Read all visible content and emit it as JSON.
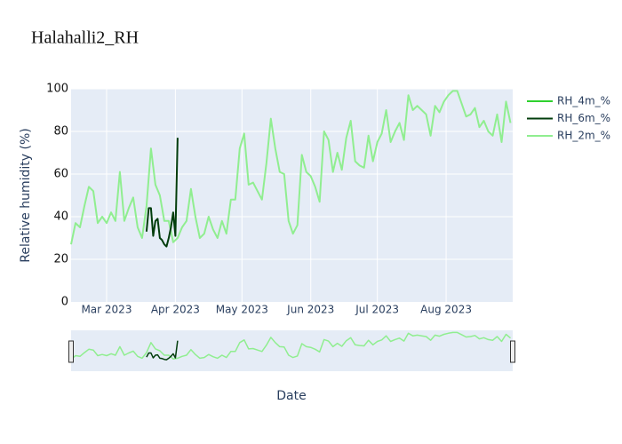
{
  "chart_data": {
    "type": "line",
    "title": "Halahalli2_RH",
    "xlabel": "Date",
    "ylabel": "Relative humidity (%)",
    "xlim": [
      "2023-02-13",
      "2023-08-31"
    ],
    "xticks": [
      {
        "value": "2023-03-01",
        "label": "Mar 2023"
      },
      {
        "value": "2023-04-01",
        "label": "Apr 2023"
      },
      {
        "value": "2023-05-01",
        "label": "May 2023"
      },
      {
        "value": "2023-06-01",
        "label": "Jun 2023"
      },
      {
        "value": "2023-07-01",
        "label": "Jul 2023"
      },
      {
        "value": "2023-08-01",
        "label": "Aug 2023"
      }
    ],
    "ylim": [
      0,
      100
    ],
    "yticks": [
      0,
      20,
      40,
      60,
      80,
      100
    ],
    "grid": true,
    "legend": "right",
    "series": [
      {
        "name": "RH_4m_%",
        "color": "#2fd12f",
        "x": [],
        "values": []
      },
      {
        "name": "RH_6m_%",
        "color": "#023d0c",
        "x": [
          "2023-03-19",
          "2023-03-20",
          "2023-03-21",
          "2023-03-22",
          "2023-03-23",
          "2023-03-24",
          "2023-03-25",
          "2023-03-26",
          "2023-03-27",
          "2023-03-28",
          "2023-03-29",
          "2023-03-30",
          "2023-03-31",
          "2023-04-01",
          "2023-04-02"
        ],
        "values": [
          33,
          44,
          44,
          31,
          38,
          39,
          30,
          29,
          27,
          26,
          30,
          35,
          42,
          31,
          77
        ]
      },
      {
        "name": "RH_2m_%",
        "color": "#90ee90",
        "x": [
          "2023-02-13",
          "2023-02-15",
          "2023-02-17",
          "2023-02-19",
          "2023-02-21",
          "2023-02-23",
          "2023-02-25",
          "2023-02-27",
          "2023-03-01",
          "2023-03-03",
          "2023-03-05",
          "2023-03-07",
          "2023-03-09",
          "2023-03-11",
          "2023-03-13",
          "2023-03-15",
          "2023-03-17",
          "2023-03-19",
          "2023-03-21",
          "2023-03-23",
          "2023-03-25",
          "2023-03-27",
          "2023-03-29",
          "2023-03-31",
          "2023-04-02",
          "2023-04-04",
          "2023-04-06",
          "2023-04-08",
          "2023-04-10",
          "2023-04-12",
          "2023-04-14",
          "2023-04-16",
          "2023-04-18",
          "2023-04-20",
          "2023-04-22",
          "2023-04-24",
          "2023-04-26",
          "2023-04-28",
          "2023-04-30",
          "2023-05-02",
          "2023-05-04",
          "2023-05-06",
          "2023-05-08",
          "2023-05-10",
          "2023-05-12",
          "2023-05-14",
          "2023-05-16",
          "2023-05-18",
          "2023-05-20",
          "2023-05-22",
          "2023-05-24",
          "2023-05-26",
          "2023-05-28",
          "2023-05-30",
          "2023-06-01",
          "2023-06-03",
          "2023-06-05",
          "2023-06-07",
          "2023-06-09",
          "2023-06-11",
          "2023-06-13",
          "2023-06-15",
          "2023-06-17",
          "2023-06-19",
          "2023-06-21",
          "2023-06-23",
          "2023-06-25",
          "2023-06-27",
          "2023-06-29",
          "2023-07-01",
          "2023-07-03",
          "2023-07-05",
          "2023-07-07",
          "2023-07-09",
          "2023-07-11",
          "2023-07-13",
          "2023-07-15",
          "2023-07-17",
          "2023-07-19",
          "2023-07-21",
          "2023-07-23",
          "2023-07-25",
          "2023-07-27",
          "2023-07-29",
          "2023-07-31",
          "2023-08-02",
          "2023-08-04",
          "2023-08-06",
          "2023-08-08",
          "2023-08-10",
          "2023-08-12",
          "2023-08-14",
          "2023-08-16",
          "2023-08-18",
          "2023-08-20",
          "2023-08-22",
          "2023-08-24",
          "2023-08-26",
          "2023-08-28",
          "2023-08-30"
        ],
        "values": [
          27,
          37,
          35,
          45,
          54,
          52,
          37,
          40,
          37,
          42,
          38,
          61,
          38,
          44,
          49,
          35,
          30,
          45,
          72,
          55,
          50,
          38,
          38,
          28,
          30,
          35,
          38,
          53,
          40,
          30,
          32,
          40,
          34,
          30,
          38,
          32,
          48,
          48,
          72,
          79,
          55,
          56,
          52,
          48,
          65,
          86,
          72,
          61,
          60,
          38,
          32,
          36,
          69,
          61,
          59,
          54,
          47,
          80,
          76,
          61,
          70,
          62,
          77,
          85,
          66,
          64,
          63,
          78,
          66,
          75,
          79,
          90,
          75,
          80,
          84,
          76,
          97,
          90,
          92,
          90,
          88,
          78,
          92,
          89,
          94,
          97,
          99,
          99,
          93,
          87,
          88,
          91,
          82,
          85,
          80,
          78,
          88,
          75,
          94,
          84
        ]
      }
    ]
  }
}
